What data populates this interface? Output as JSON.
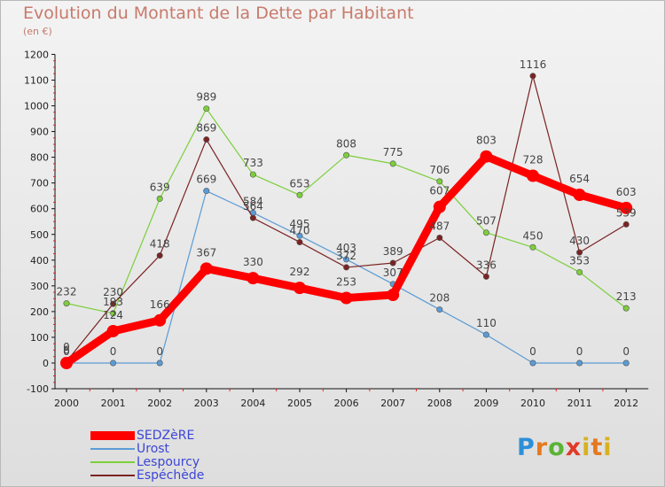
{
  "page": {
    "title": "Evolution du Montant de la Dette par Habitant",
    "subtitle": "(en €)",
    "logo_text": "Proxiti"
  },
  "chart_data": {
    "type": "line",
    "title": "Evolution du Montant de la Dette par Habitant",
    "subtitle": "(en €)",
    "xlabel": "",
    "ylabel": "",
    "x": [
      "2000",
      "2001",
      "2002",
      "2003",
      "2004",
      "2005",
      "2006",
      "2007",
      "2008",
      "2009",
      "2010",
      "2011",
      "2012"
    ],
    "ylim": [
      -100,
      1200
    ],
    "yticks": [
      "-100",
      "0",
      "100",
      "200",
      "300",
      "400",
      "500",
      "600",
      "700",
      "800",
      "900",
      "1000",
      "1100",
      "1200"
    ],
    "grid": false,
    "legend_position": "bottom-left",
    "series": [
      {
        "name": "SEDZèRE",
        "color": "#ff0000",
        "values": [
          0,
          124,
          166,
          367,
          330,
          292,
          253,
          265,
          607,
          803,
          728,
          654,
          603
        ],
        "labels": [
          "0",
          "124",
          "166",
          "367",
          "330",
          "292",
          "253",
          "",
          "607",
          "803",
          "728",
          "654",
          "603"
        ]
      },
      {
        "name": "Urost",
        "color": "#5b9bd5",
        "values": [
          0,
          0,
          0,
          669,
          584,
          495,
          403,
          307,
          208,
          110,
          0,
          0,
          0
        ],
        "labels": [
          "0",
          "0",
          "0",
          "669",
          "584",
          "495",
          "403",
          "307",
          "208",
          "110",
          "0",
          "0",
          "0"
        ]
      },
      {
        "name": "Lespourcy",
        "color": "#7ccf3a",
        "values": [
          232,
          193,
          639,
          989,
          733,
          653,
          808,
          775,
          706,
          507,
          450,
          353,
          213
        ],
        "labels": [
          "232",
          "193",
          "639",
          "989",
          "733",
          "653",
          "808",
          "775",
          "706",
          "507",
          "450",
          "353",
          "213"
        ]
      },
      {
        "name": "Espéchède",
        "color": "#7b2323",
        "values": [
          6,
          230,
          418,
          869,
          564,
          470,
          372,
          389,
          487,
          336,
          1116,
          430,
          539
        ],
        "labels": [
          "6",
          "230",
          "418",
          "869",
          "564",
          "470",
          "372",
          "389",
          "487",
          "336",
          "1116",
          "430",
          "539"
        ]
      }
    ]
  }
}
